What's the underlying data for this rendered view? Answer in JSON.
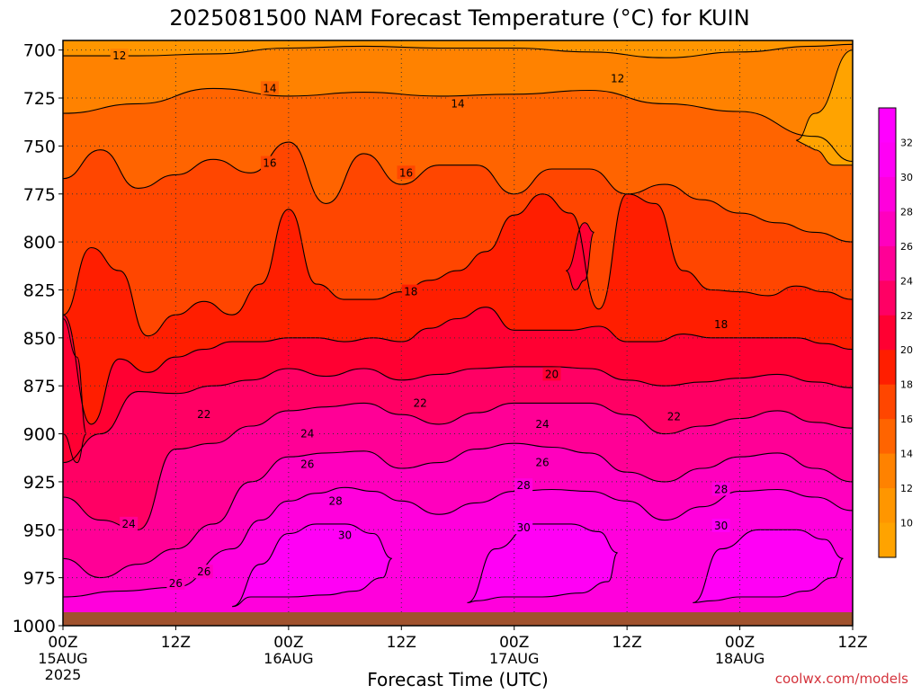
{
  "chart_data": {
    "type": "heatmap",
    "title": "2025081500 NAM Forecast Temperature (°C) for KUIN",
    "xlabel": "Forecast Time (UTC)",
    "ylabel": "",
    "credit": "coolwx.com/models",
    "x_ticks": [
      {
        "hours": 0,
        "label": "00Z",
        "date": "15AUG",
        "year": "2025"
      },
      {
        "hours": 12,
        "label": "12Z",
        "date": "",
        "year": ""
      },
      {
        "hours": 24,
        "label": "00Z",
        "date": "16AUG",
        "year": ""
      },
      {
        "hours": 36,
        "label": "12Z",
        "date": "",
        "year": ""
      },
      {
        "hours": 48,
        "label": "00Z",
        "date": "17AUG",
        "year": ""
      },
      {
        "hours": 60,
        "label": "12Z",
        "date": "",
        "year": ""
      },
      {
        "hours": 72,
        "label": "00Z",
        "date": "18AUG",
        "year": ""
      },
      {
        "hours": 84,
        "label": "12Z",
        "date": "",
        "year": ""
      }
    ],
    "xlim": [
      0,
      84
    ],
    "y_ticks": [
      "700",
      "725",
      "750",
      "775",
      "800",
      "825",
      "850",
      "875",
      "900",
      "925",
      "950",
      "975",
      "1000"
    ],
    "ylim": [
      1000,
      695
    ],
    "surface_pressure": 993,
    "surface_color": "#a0522d",
    "colorbar": {
      "labels": [
        "10",
        "12",
        "14",
        "16",
        "18",
        "20",
        "22",
        "24",
        "26",
        "28",
        "30",
        "32"
      ],
      "bands": [
        {
          "min": 8,
          "max": 10,
          "color": "#ffa300"
        },
        {
          "min": 10,
          "max": 12,
          "color": "#ff9600"
        },
        {
          "min": 12,
          "max": 14,
          "color": "#ff8200"
        },
        {
          "min": 14,
          "max": 16,
          "color": "#ff6400"
        },
        {
          "min": 16,
          "max": 18,
          "color": "#ff4600"
        },
        {
          "min": 18,
          "max": 20,
          "color": "#ff1e00"
        },
        {
          "min": 20,
          "max": 22,
          "color": "#ff0032"
        },
        {
          "min": 22,
          "max": 24,
          "color": "#ff0064"
        },
        {
          "min": 24,
          "max": 26,
          "color": "#ff0096"
        },
        {
          "min": 26,
          "max": 28,
          "color": "#ff00be"
        },
        {
          "min": 28,
          "max": 30,
          "color": "#ff00dc"
        },
        {
          "min": 30,
          "max": 32,
          "color": "#ff00f5"
        },
        {
          "min": 32,
          "max": 34,
          "color": "#ff00ff"
        }
      ]
    },
    "contours": [
      {
        "value": 12,
        "hours": [
          0,
          8,
          16,
          24,
          32,
          40,
          48,
          56,
          64,
          72,
          80,
          84
        ],
        "pressure": [
          703,
          703,
          702,
          699,
          698,
          699,
          699,
          701,
          704,
          701,
          698,
          697
        ]
      },
      {
        "value": 14,
        "hours": [
          0,
          8,
          16,
          24,
          32,
          40,
          48,
          56,
          64,
          72,
          80,
          84
        ],
        "pressure": [
          733,
          728,
          720,
          724,
          722,
          724,
          723,
          721,
          728,
          732,
          745,
          758
        ]
      },
      {
        "value": 16,
        "hours": [
          0,
          4,
          8,
          12,
          16,
          20,
          24,
          28,
          32,
          36,
          40,
          44,
          48,
          52,
          56,
          60,
          64,
          68,
          72,
          76,
          80,
          84
        ],
        "pressure": [
          767,
          752,
          772,
          765,
          757,
          764,
          748,
          780,
          754,
          770,
          760,
          760,
          775,
          762,
          762,
          775,
          770,
          778,
          785,
          790,
          795,
          800
        ]
      },
      {
        "value": 18,
        "hours": [
          0,
          3,
          6,
          9,
          12,
          15,
          18,
          21,
          24,
          27,
          30,
          33,
          36,
          39,
          42,
          45,
          48,
          51,
          54,
          57,
          60,
          63,
          66,
          69,
          72,
          75,
          78,
          81,
          84
        ],
        "pressure": [
          838,
          803,
          815,
          849,
          838,
          831,
          838,
          822,
          783,
          822,
          830,
          830,
          826,
          820,
          815,
          805,
          786,
          775,
          785,
          835,
          775,
          780,
          815,
          825,
          826,
          828,
          823,
          826,
          830
        ]
      },
      {
        "value": 20,
        "hours": [
          0,
          3,
          6,
          9,
          12,
          15,
          18,
          21,
          24,
          27,
          30,
          33,
          36,
          39,
          42,
          45,
          48,
          51,
          54,
          57,
          60,
          63,
          66,
          69,
          72,
          75,
          78,
          81,
          84
        ],
        "pressure": [
          838,
          895,
          861,
          868,
          860,
          856,
          852,
          852,
          850,
          850,
          852,
          850,
          852,
          845,
          840,
          834,
          846,
          846,
          846,
          844,
          852,
          852,
          848,
          850,
          850,
          850,
          850,
          853,
          856
        ]
      },
      {
        "value": 22,
        "hours": [
          0,
          4,
          8,
          12,
          16,
          20,
          24,
          28,
          32,
          36,
          40,
          44,
          48,
          52,
          56,
          60,
          64,
          68,
          72,
          76,
          80,
          84
        ],
        "pressure": [
          915,
          900,
          878,
          879,
          875,
          872,
          866,
          870,
          866,
          872,
          869,
          866,
          865,
          865,
          866,
          872,
          875,
          873,
          871,
          869,
          873,
          876
        ]
      },
      {
        "value": 24,
        "hours": [
          0,
          4,
          8,
          12,
          16,
          20,
          24,
          28,
          32,
          36,
          40,
          44,
          48,
          52,
          56,
          60,
          64,
          68,
          72,
          76,
          80,
          84
        ],
        "pressure": [
          933,
          945,
          950,
          908,
          905,
          896,
          888,
          886,
          884,
          890,
          895,
          889,
          884,
          884,
          884,
          890,
          900,
          896,
          892,
          888,
          894,
          897
        ]
      },
      {
        "value": 26,
        "hours": [
          0,
          4,
          8,
          12,
          16,
          20,
          24,
          28,
          32,
          36,
          40,
          44,
          48,
          52,
          56,
          60,
          64,
          68,
          72,
          76,
          80,
          84
        ],
        "pressure": [
          965,
          975,
          968,
          960,
          947,
          925,
          912,
          910,
          909,
          918,
          915,
          908,
          905,
          907,
          910,
          920,
          925,
          918,
          912,
          910,
          918,
          925
        ]
      },
      {
        "value": 28,
        "hours": [
          0,
          6,
          12,
          18,
          21,
          24,
          27,
          30,
          33,
          36,
          40,
          44,
          48,
          52,
          56,
          60,
          64,
          68,
          72,
          76,
          80,
          84
        ],
        "pressure": [
          985,
          982,
          980,
          960,
          945,
          935,
          931,
          928,
          930,
          935,
          942,
          936,
          930,
          929,
          930,
          935,
          945,
          938,
          930,
          929,
          933,
          940
        ]
      },
      {
        "value": 30,
        "hours": [
          18,
          21,
          24,
          27,
          30,
          33,
          35,
          34,
          31,
          28,
          24,
          20,
          18
        ],
        "pressure": [
          990,
          968,
          952,
          947,
          947,
          952,
          965,
          975,
          982,
          984,
          985,
          985,
          990
        ]
      },
      {
        "value": 30,
        "hours": [
          43,
          46,
          50,
          54,
          57,
          59,
          58,
          55,
          51,
          47,
          44,
          43
        ],
        "pressure": [
          988,
          960,
          947,
          947,
          951,
          962,
          977,
          983,
          985,
          985,
          987,
          988
        ]
      },
      {
        "value": 30,
        "hours": [
          67,
          70,
          74,
          78,
          81,
          83,
          82,
          79,
          76,
          72,
          69,
          67
        ],
        "pressure": [
          988,
          960,
          950,
          950,
          955,
          965,
          975,
          982,
          985,
          985,
          987,
          988
        ]
      }
    ],
    "label_spots": [
      {
        "value": "12",
        "hours": 6,
        "pressure": 703
      },
      {
        "value": "12",
        "hours": 59,
        "pressure": 715
      },
      {
        "value": "14",
        "hours": 22,
        "pressure": 720
      },
      {
        "value": "14",
        "hours": 42,
        "pressure": 728
      },
      {
        "value": "16",
        "hours": 22,
        "pressure": 759
      },
      {
        "value": "16",
        "hours": 36.5,
        "pressure": 764
      },
      {
        "value": "18",
        "hours": 37,
        "pressure": 826
      },
      {
        "value": "18",
        "hours": 70,
        "pressure": 843
      },
      {
        "value": "20",
        "hours": 52,
        "pressure": 869
      },
      {
        "value": "22",
        "hours": 15,
        "pressure": 890
      },
      {
        "value": "22",
        "hours": 38,
        "pressure": 884
      },
      {
        "value": "22",
        "hours": 65,
        "pressure": 891
      },
      {
        "value": "24",
        "hours": 26,
        "pressure": 900
      },
      {
        "value": "24",
        "hours": 51,
        "pressure": 895
      },
      {
        "value": "24",
        "hours": 7,
        "pressure": 947
      },
      {
        "value": "26",
        "hours": 26,
        "pressure": 916
      },
      {
        "value": "26",
        "hours": 51,
        "pressure": 915
      },
      {
        "value": "26",
        "hours": 12,
        "pressure": 978
      },
      {
        "value": "26",
        "hours": 15,
        "pressure": 972
      },
      {
        "value": "28",
        "hours": 29,
        "pressure": 935
      },
      {
        "value": "28",
        "hours": 49,
        "pressure": 927
      },
      {
        "value": "28",
        "hours": 70,
        "pressure": 929
      },
      {
        "value": "30",
        "hours": 30,
        "pressure": 953
      },
      {
        "value": "30",
        "hours": 49,
        "pressure": 949
      },
      {
        "value": "30",
        "hours": 70,
        "pressure": 948
      }
    ],
    "regions": [
      {
        "name": "pocket-20",
        "color": "#ff0032",
        "hours": [
          0,
          1.5,
          2.5,
          1.5,
          0
        ],
        "pressure": [
          840,
          860,
          900,
          915,
          900
        ]
      },
      {
        "name": "pocket-20-right",
        "color": "#ff0032",
        "hours": [
          53.5,
          55.5,
          56.5,
          55.5,
          54.5,
          53.5
        ],
        "pressure": [
          815,
          790,
          795,
          820,
          825,
          815
        ]
      },
      {
        "name": "pocket-10",
        "color": "#ffa300",
        "hours": [
          78,
          80,
          84,
          84,
          82,
          80
        ],
        "pressure": [
          747,
          733,
          700,
          760,
          760,
          752
        ]
      }
    ],
    "grid": true
  }
}
